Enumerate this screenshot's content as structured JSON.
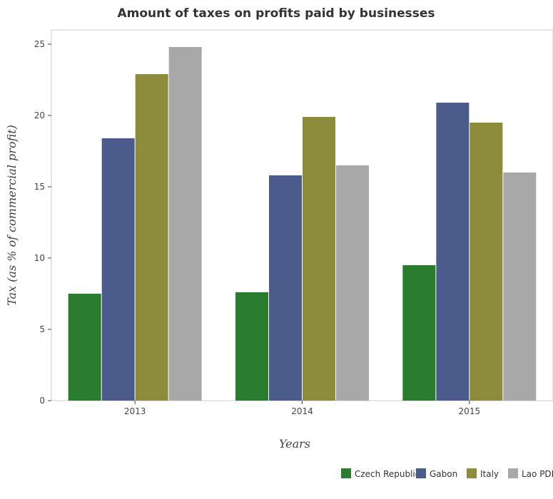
{
  "chart_data": {
    "type": "bar",
    "title": "Amount of taxes on profits paid by businesses",
    "xlabel": "Years",
    "ylabel": "Tax (as % of commercial profit)",
    "categories": [
      "2013",
      "2014",
      "2015"
    ],
    "ylim": [
      0,
      26
    ],
    "yticks": [
      "0",
      "5",
      "10",
      "15",
      "20",
      "25"
    ],
    "grid": false,
    "legend_position": "bottom-right",
    "series": [
      {
        "name": "Czech Republic",
        "color": "#2a7d2e",
        "values": [
          7.5,
          7.6,
          9.5
        ]
      },
      {
        "name": "Gabon",
        "color": "#4b5c8c",
        "values": [
          18.4,
          15.8,
          20.9
        ]
      },
      {
        "name": "Italy",
        "color": "#8c8c3c",
        "values": [
          22.9,
          19.9,
          19.5
        ]
      },
      {
        "name": "Lao PDR",
        "color": "#a8a8a8",
        "values": [
          24.8,
          16.5,
          16.0
        ]
      }
    ]
  }
}
